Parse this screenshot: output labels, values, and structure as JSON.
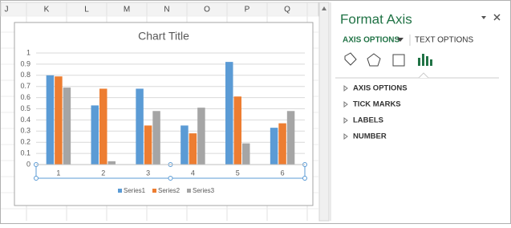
{
  "columns": [
    "J",
    "K",
    "L",
    "M",
    "N",
    "O",
    "P",
    "Q"
  ],
  "chart": {
    "type": "bar",
    "title": "Chart Title",
    "categories": [
      "1",
      "2",
      "3",
      "4",
      "5",
      "6"
    ],
    "series": [
      {
        "name": "Series1",
        "color": "#5b9bd5",
        "values": [
          0.8,
          0.53,
          0.68,
          0.35,
          0.92,
          0.33
        ]
      },
      {
        "name": "Series2",
        "color": "#ed7d31",
        "values": [
          0.79,
          0.68,
          0.35,
          0.28,
          0.61,
          0.37
        ]
      },
      {
        "name": "Series3",
        "color": "#a5a5a5",
        "values": [
          0.69,
          0.03,
          0.48,
          0.51,
          0.19,
          0.48
        ]
      }
    ],
    "ylim": [
      0,
      1
    ],
    "yticks": [
      0,
      0.1,
      0.2,
      0.3,
      0.4,
      0.5,
      0.6,
      0.7,
      0.8,
      0.9,
      1
    ],
    "grid": true,
    "legend": "bottom"
  },
  "pane": {
    "title": "Format Axis",
    "tabs": [
      "AXIS OPTIONS",
      "TEXT OPTIONS"
    ],
    "sections": [
      "AXIS OPTIONS",
      "TICK MARKS",
      "LABELS",
      "NUMBER"
    ]
  }
}
